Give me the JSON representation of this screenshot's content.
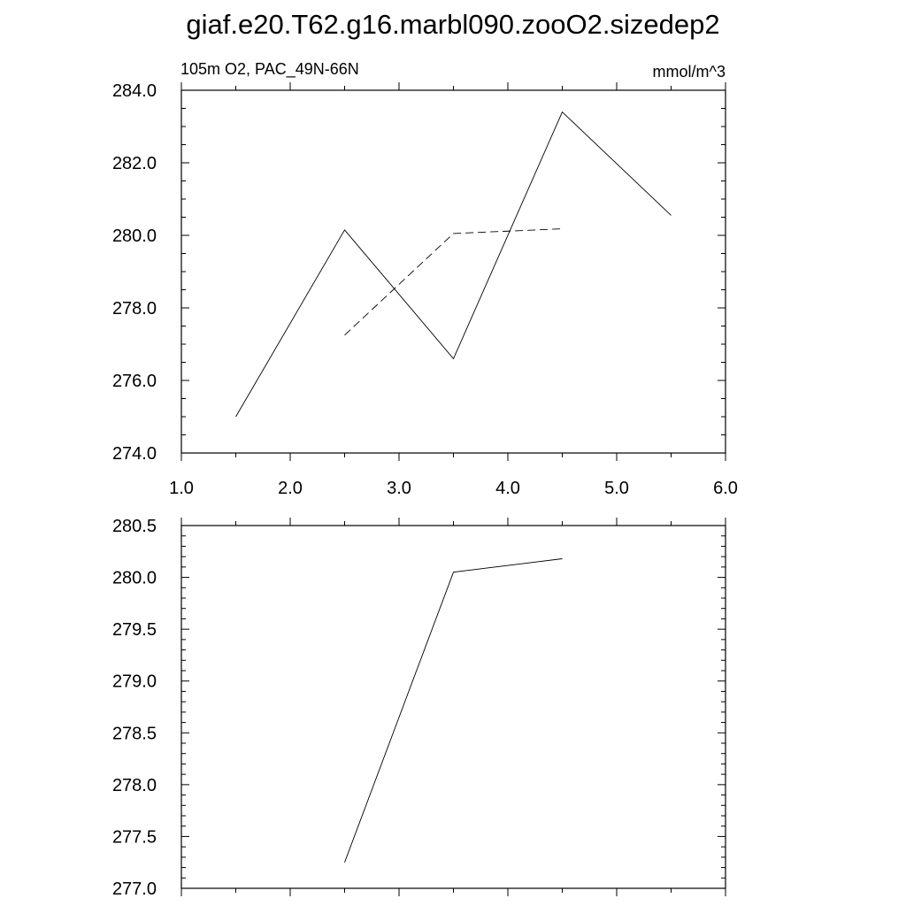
{
  "page": {
    "title": "giaf.e20.T62.g16.marbl090.zooO2.sizedep2"
  },
  "chart_data": [
    {
      "type": "line",
      "left_label": "105m O2, PAC_49N-66N",
      "right_label": "mmol/m^3",
      "xlim": [
        1.0,
        6.0
      ],
      "ylim": [
        274.0,
        284.0
      ],
      "x_ticks": [
        1.0,
        2.0,
        3.0,
        4.0,
        5.0,
        6.0
      ],
      "x_tick_labels": [
        "1.0",
        "2.0",
        "3.0",
        "4.0",
        "5.0",
        "6.0"
      ],
      "x_minor_step": 0.5,
      "y_ticks": [
        274.0,
        276.0,
        278.0,
        280.0,
        282.0,
        284.0
      ],
      "y_tick_labels": [
        "274.0",
        "276.0",
        "278.0",
        "280.0",
        "282.0",
        "284.0"
      ],
      "y_minor_step": 0.5,
      "grid": false,
      "series": [
        {
          "style": "solid",
          "x": [
            1.5,
            2.5,
            3.5,
            4.5,
            5.5
          ],
          "y": [
            275.0,
            280.15,
            276.6,
            283.4,
            280.55
          ]
        },
        {
          "style": "dashed",
          "x": [
            2.5,
            3.5,
            4.5
          ],
          "y": [
            277.25,
            280.05,
            280.18
          ]
        }
      ]
    },
    {
      "type": "line",
      "xlim": [
        1.0,
        6.0
      ],
      "ylim": [
        277.0,
        280.5
      ],
      "x_ticks": [
        1.0,
        2.0,
        3.0,
        4.0,
        5.0,
        6.0
      ],
      "x_tick_labels": [
        "",
        "",
        "",
        "",
        "",
        ""
      ],
      "x_minor_step": 0.5,
      "y_ticks": [
        277.0,
        277.5,
        278.0,
        278.5,
        279.0,
        279.5,
        280.0,
        280.5
      ],
      "y_tick_labels": [
        "277.0",
        "277.5",
        "278.0",
        "278.5",
        "279.0",
        "279.5",
        "280.0",
        "280.5"
      ],
      "y_minor_step": 0.1,
      "grid": false,
      "series": [
        {
          "style": "solid",
          "x": [
            2.5,
            3.5,
            4.5
          ],
          "y": [
            277.25,
            280.05,
            280.18
          ]
        }
      ]
    }
  ]
}
